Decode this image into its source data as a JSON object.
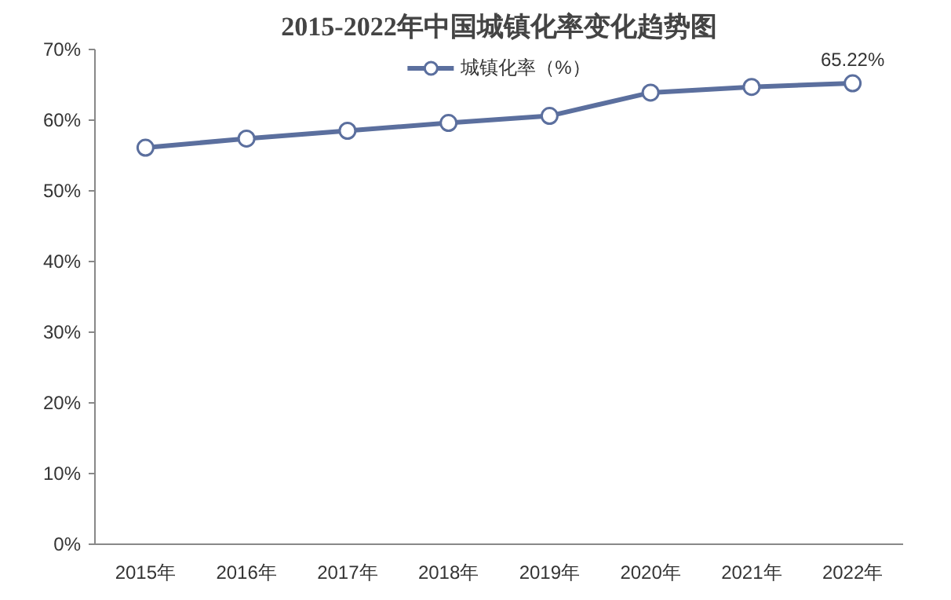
{
  "chart_data": {
    "type": "line",
    "title": "2015-2022年中国城镇化率变化趋势图",
    "categories": [
      "2015年",
      "2016年",
      "2017年",
      "2018年",
      "2019年",
      "2020年",
      "2021年",
      "2022年"
    ],
    "series": [
      {
        "name": "城镇化率（%）",
        "color": "#5b6f9e",
        "values": [
          56.1,
          57.4,
          58.5,
          59.6,
          60.6,
          63.9,
          64.7,
          65.22
        ],
        "value_labels": [
          null,
          null,
          null,
          null,
          null,
          null,
          null,
          "65.22%"
        ]
      }
    ],
    "ylim": [
      0,
      70
    ],
    "yticks": [
      {
        "value": 0,
        "label": "0%"
      },
      {
        "value": 10,
        "label": "10%"
      },
      {
        "value": 20,
        "label": "20%"
      },
      {
        "value": 30,
        "label": "30%"
      },
      {
        "value": 40,
        "label": "40%"
      },
      {
        "value": 50,
        "label": "50%"
      },
      {
        "value": 60,
        "label": "60%"
      },
      {
        "value": 70,
        "label": "70%"
      }
    ],
    "grid": false,
    "legend": "top",
    "marker": "circle",
    "line_style": "solid"
  }
}
